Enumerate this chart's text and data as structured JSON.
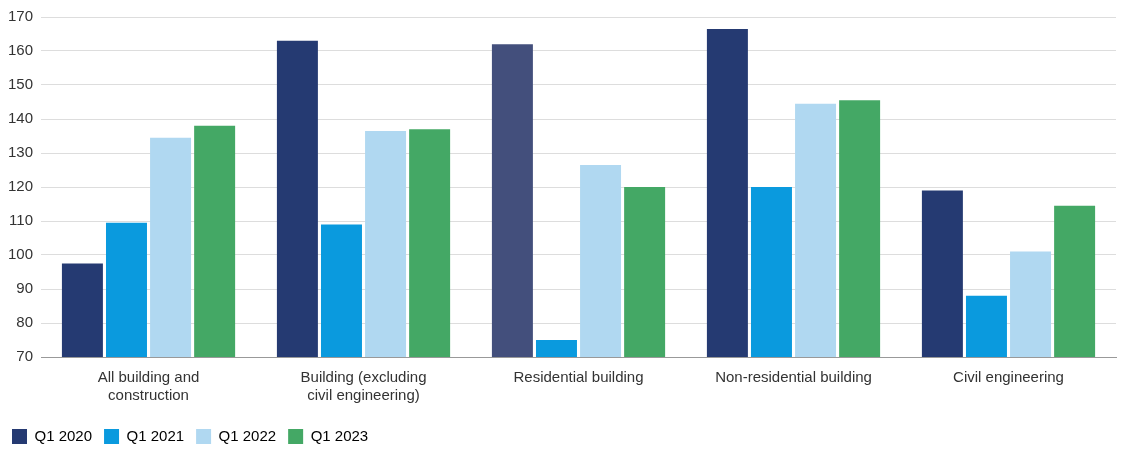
{
  "chart_data": {
    "type": "bar",
    "categories": [
      "All building and\nconstruction",
      "Building (excluding\ncivil engineering)",
      "Residential building",
      "Non-residential building",
      "Civil engineering"
    ],
    "series": [
      {
        "name": "Q1 2020",
        "color": "#253a72",
        "colors": [
          "#253a72",
          "#253a72",
          "#434f7c",
          "#253a72",
          "#253a72"
        ],
        "values": [
          97.5,
          163,
          162,
          166.5,
          119
        ]
      },
      {
        "name": "Q1 2021",
        "color": "#0a9ade",
        "values": [
          109.5,
          109,
          75,
          120,
          88
        ]
      },
      {
        "name": "Q1 2022",
        "color": "#b0d8f1",
        "values": [
          134.5,
          136.5,
          126.5,
          144.5,
          101
        ]
      },
      {
        "name": "Q1 2023",
        "color": "#44a865",
        "values": [
          138,
          137,
          120,
          145.5,
          114.5
        ]
      }
    ],
    "ylim": [
      70,
      170
    ],
    "yticks": [
      70,
      80,
      90,
      100,
      110,
      120,
      130,
      140,
      150,
      160,
      170
    ],
    "grid": "y",
    "legend": "bottom left"
  }
}
